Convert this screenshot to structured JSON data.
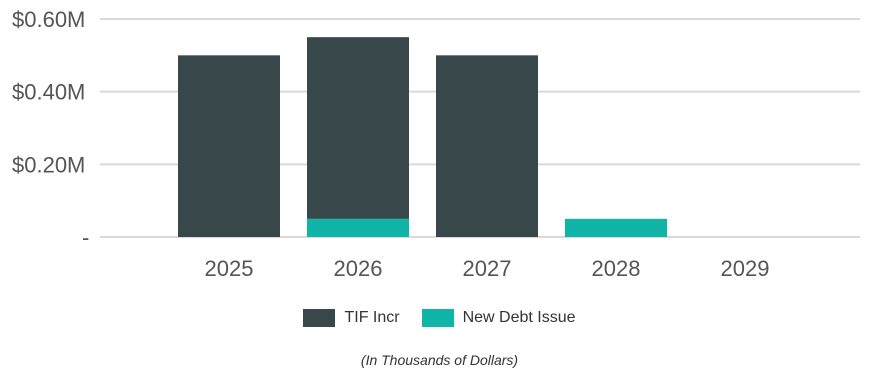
{
  "chart_data": {
    "type": "bar",
    "stacked": true,
    "categories": [
      "2025",
      "2026",
      "2027",
      "2028",
      "2029"
    ],
    "series": [
      {
        "name": "New Debt Issue",
        "color": "#10B5A8",
        "values": [
          0,
          0.05,
          0,
          0.05,
          0
        ]
      },
      {
        "name": "TIF Incr",
        "color": "#37474A",
        "values": [
          0.5,
          0.5,
          0.5,
          0,
          0
        ]
      }
    ],
    "y_ticks": [
      {
        "value": 0,
        "label": "-"
      },
      {
        "value": 0.2,
        "label": "$0.20M"
      },
      {
        "value": 0.4,
        "label": "$0.40M"
      },
      {
        "value": 0.6,
        "label": "$0.60M"
      }
    ],
    "ylim": [
      0,
      0.6
    ],
    "grid": true,
    "legend_position": "bottom",
    "note": "(In Thousands of Dollars)"
  },
  "legend": {
    "items": [
      {
        "label": "TIF Incr",
        "color": "#37474A"
      },
      {
        "label": "New Debt Issue",
        "color": "#10B5A8"
      }
    ]
  }
}
